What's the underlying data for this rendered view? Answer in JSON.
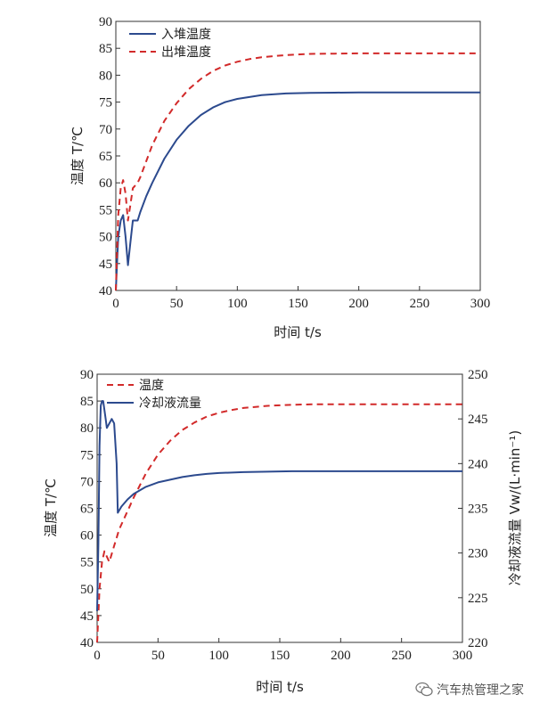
{
  "chart_data": [
    {
      "type": "line",
      "xlabel": "时间 t/s",
      "ylabel": "温度 T/℃",
      "xlim": [
        0,
        300
      ],
      "ylim": [
        40,
        90
      ],
      "xticks": [
        "0",
        "50",
        "100",
        "150",
        "200",
        "250",
        "300"
      ],
      "yticks": [
        "40",
        "45",
        "50",
        "55",
        "60",
        "65",
        "70",
        "75",
        "80",
        "85",
        "90"
      ],
      "legend_position": "top-left",
      "grid": false,
      "series": [
        {
          "name": "入堆温度",
          "color": "#2c4a8e",
          "style": "solid",
          "x": [
            0,
            2,
            4,
            6,
            8,
            10,
            12,
            14,
            16,
            18,
            20,
            25,
            30,
            40,
            50,
            60,
            70,
            80,
            90,
            100,
            120,
            140,
            160,
            180,
            200,
            250,
            300
          ],
          "y": [
            40,
            50,
            53,
            54,
            50,
            44.7,
            49,
            53,
            53,
            53,
            54.5,
            57.5,
            60,
            64.5,
            68,
            70.6,
            72.6,
            74,
            75,
            75.6,
            76.3,
            76.6,
            76.7,
            76.75,
            76.8,
            76.8,
            76.8
          ]
        },
        {
          "name": "出堆温度",
          "color": "#d22a2a",
          "style": "dashed",
          "x": [
            0,
            2,
            4,
            6,
            8,
            10,
            12,
            14,
            16,
            18,
            20,
            25,
            30,
            40,
            50,
            60,
            70,
            80,
            90,
            100,
            110,
            120,
            140,
            160,
            180,
            200,
            250,
            300
          ],
          "y": [
            40,
            54,
            59,
            60.5,
            58,
            53,
            56,
            59,
            59.5,
            60,
            61,
            64,
            67,
            71.5,
            74.8,
            77.4,
            79.3,
            80.8,
            81.8,
            82.5,
            83.0,
            83.35,
            83.75,
            83.95,
            84.0,
            84.05,
            84.05,
            84.05
          ]
        }
      ]
    },
    {
      "type": "line",
      "xlabel": "时间 t/s",
      "ylabel": "温度 T/℃",
      "ylabel_right": "冷却液流量 Vw/(L·min⁻¹)",
      "xlim": [
        0,
        300
      ],
      "ylim": [
        40,
        90
      ],
      "ylim_right": [
        220,
        250
      ],
      "xticks": [
        "0",
        "50",
        "100",
        "150",
        "200",
        "250",
        "300"
      ],
      "yticks": [
        "40",
        "45",
        "50",
        "55",
        "60",
        "65",
        "70",
        "75",
        "80",
        "85",
        "90"
      ],
      "yticks_right": [
        "220",
        "225",
        "230",
        "235",
        "240",
        "245",
        "250"
      ],
      "legend_position": "top-left",
      "grid": false,
      "series": [
        {
          "name": "温度",
          "color": "#d22a2a",
          "style": "dashed",
          "axis": "left",
          "x": [
            0,
            2,
            4,
            6,
            8,
            10,
            12,
            14,
            16,
            18,
            20,
            25,
            30,
            40,
            50,
            60,
            70,
            80,
            90,
            100,
            110,
            120,
            140,
            160,
            180,
            200,
            250,
            300
          ],
          "y": [
            40,
            50,
            55,
            57,
            56,
            55,
            56.5,
            58,
            59.5,
            61,
            62,
            64.5,
            67,
            71.5,
            75,
            77.6,
            79.6,
            81,
            82.1,
            82.8,
            83.3,
            83.7,
            84.1,
            84.3,
            84.4,
            84.4,
            84.4,
            84.4
          ]
        },
        {
          "name": "冷却液流量",
          "color": "#2c4a8e",
          "style": "solid",
          "axis": "right",
          "x": [
            0,
            1,
            2,
            3,
            4,
            5,
            6,
            7,
            8,
            10,
            12,
            14,
            16,
            17,
            20,
            25,
            30,
            40,
            50,
            60,
            70,
            80,
            90,
            100,
            120,
            140,
            160,
            200,
            250,
            300
          ],
          "y": [
            223.5,
            231,
            242,
            246.5,
            247,
            247,
            246,
            245,
            244,
            244.5,
            245,
            244.5,
            240,
            234.5,
            235.2,
            236,
            236.6,
            237.4,
            237.9,
            238.2,
            238.5,
            238.7,
            238.85,
            238.95,
            239.05,
            239.1,
            239.15,
            239.15,
            239.15,
            239.15
          ]
        }
      ]
    }
  ],
  "watermark": {
    "icon": "wechat-icon",
    "text": "汽车热管理之家"
  }
}
